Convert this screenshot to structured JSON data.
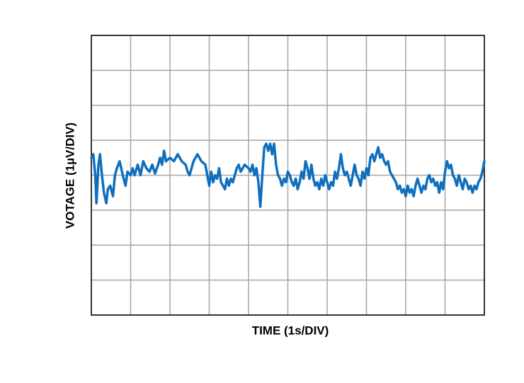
{
  "chart_data": {
    "type": "line",
    "xlabel": "TIME (1s/DIV)",
    "ylabel": "VOTAGE (1µV/DIV)",
    "xlim": [
      0,
      10
    ],
    "ylim": [
      -4,
      4
    ],
    "xticks": [
      0,
      1,
      2,
      3,
      4,
      5,
      6,
      7,
      8,
      9,
      10
    ],
    "yticks": [
      -4,
      -3,
      -2,
      -1,
      0,
      1,
      2,
      3,
      4
    ],
    "grid": true,
    "x": [
      0,
      0.05,
      0.1,
      0.13,
      0.18,
      0.22,
      0.27,
      0.32,
      0.38,
      0.42,
      0.48,
      0.55,
      0.6,
      0.65,
      0.72,
      0.8,
      0.87,
      0.92,
      1,
      1.05,
      1.1,
      1.18,
      1.25,
      1.32,
      1.4,
      1.48,
      1.55,
      1.62,
      1.7,
      1.75,
      1.8,
      1.85,
      1.9,
      2,
      2.1,
      2.2,
      2.3,
      2.4,
      2.45,
      2.5,
      2.55,
      2.6,
      2.7,
      2.8,
      2.9,
      2.95,
      3,
      3.05,
      3.1,
      3.15,
      3.2,
      3.25,
      3.3,
      3.35,
      3.4,
      3.45,
      3.5,
      3.55,
      3.6,
      3.65,
      3.7,
      3.75,
      3.8,
      3.85,
      3.9,
      3.95,
      4,
      4.05,
      4.1,
      4.15,
      4.2,
      4.25,
      4.3,
      4.35,
      4.4,
      4.45,
      4.5,
      4.55,
      4.6,
      4.65,
      4.7,
      4.75,
      4.8,
      4.85,
      4.9,
      4.95,
      5,
      5.05,
      5.1,
      5.15,
      5.2,
      5.25,
      5.3,
      5.35,
      5.4,
      5.45,
      5.5,
      5.55,
      5.6,
      5.65,
      5.7,
      5.75,
      5.8,
      5.85,
      5.9,
      5.95,
      6,
      6.05,
      6.1,
      6.15,
      6.2,
      6.25,
      6.3,
      6.35,
      6.4,
      6.45,
      6.5,
      6.55,
      6.6,
      6.65,
      6.7,
      6.75,
      6.8,
      6.85,
      6.9,
      6.95,
      7,
      7.05,
      7.1,
      7.15,
      7.2,
      7.25,
      7.3,
      7.35,
      7.4,
      7.45,
      7.5,
      7.55,
      7.6,
      7.65,
      7.7,
      7.75,
      7.8,
      7.85,
      7.9,
      7.95,
      8,
      8.05,
      8.1,
      8.15,
      8.2,
      8.25,
      8.3,
      8.35,
      8.4,
      8.45,
      8.5,
      8.55,
      8.6,
      8.65,
      8.7,
      8.75,
      8.8,
      8.85,
      8.9,
      8.95,
      9,
      9.05,
      9.1,
      9.15,
      9.2,
      9.25,
      9.3,
      9.35,
      9.4,
      9.45,
      9.5,
      9.55,
      9.6,
      9.65,
      9.7,
      9.75,
      9.8,
      9.85,
      9.9,
      9.95,
      10
    ],
    "series": [
      {
        "color": "#0f6fbf",
        "values": [
          0.5,
          0.6,
          0,
          -0.8,
          0.3,
          0.6,
          0,
          -0.5,
          -0.8,
          -0.4,
          -0.3,
          -0.6,
          0,
          0.2,
          0.4,
          0,
          -0.3,
          0.1,
          0,
          0.2,
          0,
          0.3,
          0,
          0.4,
          0.2,
          0.1,
          0.3,
          0.05,
          0.3,
          0.5,
          0.3,
          0.7,
          0.4,
          0.5,
          0.4,
          0.6,
          0.4,
          0.3,
          0.1,
          0,
          0.2,
          0.4,
          0.6,
          0.4,
          0.3,
          0,
          -0.3,
          0.1,
          -0.2,
          0,
          -0.1,
          0.2,
          -0.2,
          -0.3,
          -0.4,
          -0.1,
          -0.3,
          -0.1,
          -0.2,
          0,
          0.2,
          0.3,
          0.1,
          0.2,
          0.3,
          0.25,
          0.2,
          0.1,
          0.3,
          0,
          0.2,
          -0.2,
          -0.9,
          0,
          0.8,
          0.9,
          0.7,
          0.9,
          0.6,
          0.9,
          0.3,
          0,
          -0.1,
          -0.3,
          -0.1,
          -0.2,
          0.1,
          0,
          -0.2,
          -0.3,
          -0.1,
          -0.4,
          -0.2,
          0.1,
          -0.1,
          0.4,
          0.2,
          -0.1,
          0.3,
          -0.1,
          -0.3,
          -0.2,
          -0.4,
          -0.1,
          -0.3,
          0,
          -0.2,
          -0.4,
          -0.2,
          -0.3,
          0.1,
          -0.1,
          0.2,
          0.6,
          0.2,
          0,
          0.1,
          -0.1,
          -0.3,
          0,
          0.3,
          0,
          -0.1,
          -0.3,
          0.1,
          -0.1,
          0.2,
          0,
          0.5,
          0.6,
          0.4,
          0.6,
          0.8,
          0.5,
          0.6,
          0.4,
          0.3,
          0.4,
          0.1,
          0,
          -0.1,
          -0.2,
          -0.4,
          -0.3,
          -0.5,
          -0.4,
          -0.6,
          -0.3,
          -0.5,
          -0.4,
          -0.6,
          -0.3,
          -0.1,
          -0.3,
          -0.5,
          -0.3,
          -0.4,
          -0.1,
          0,
          -0.2,
          -0.1,
          -0.3,
          -0.2,
          -0.5,
          -0.2,
          -0.4,
          0.1,
          0.4,
          0.2,
          0.3,
          0,
          -0.1,
          -0.3,
          0,
          -0.2,
          -0.4,
          -0.1,
          -0.2,
          -0.4,
          -0.3,
          -0.5,
          -0.3,
          -0.4,
          -0.2,
          -0.1,
          0.1,
          0.4
        ]
      }
    ]
  }
}
